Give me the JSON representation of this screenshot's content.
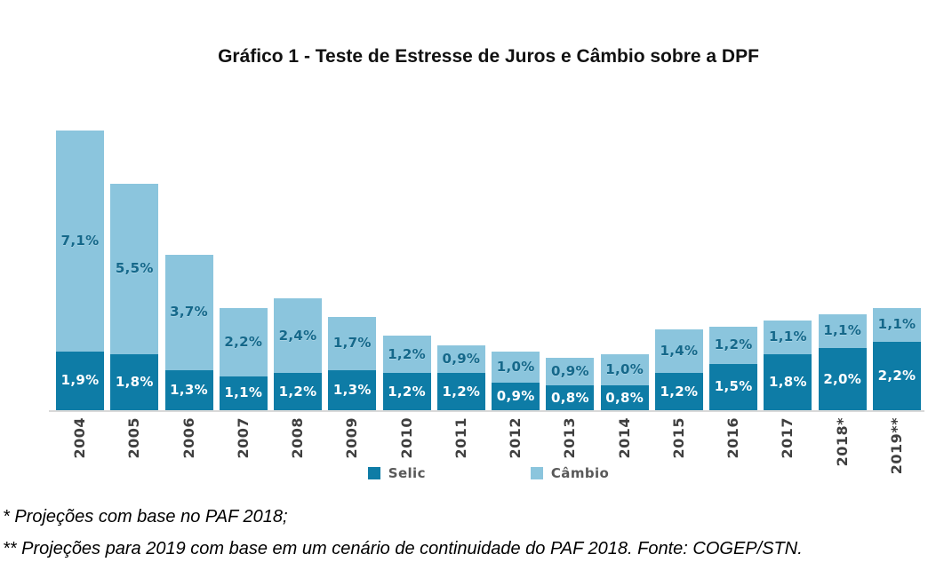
{
  "chart_data": {
    "type": "bar",
    "stacked": true,
    "title": "Gráfico 1 - Teste de Estresse de Juros e Câmbio sobre a DPF",
    "categories": [
      "2004",
      "2005",
      "2006",
      "2007",
      "2008",
      "2009",
      "2010",
      "2011",
      "2012",
      "2013",
      "2014",
      "2015",
      "2016",
      "2017",
      "2018*",
      "2019**"
    ],
    "series": [
      {
        "name": "Selic",
        "color": "#0E7CA6",
        "values": [
          1.9,
          1.8,
          1.3,
          1.1,
          1.2,
          1.3,
          1.2,
          1.2,
          0.9,
          0.8,
          0.8,
          1.2,
          1.5,
          1.8,
          2.0,
          2.2
        ],
        "labels": [
          "1,9%",
          "1,8%",
          "1,3%",
          "1,1%",
          "1,2%",
          "1,3%",
          "1,2%",
          "1,2%",
          "0,9%",
          "0,8%",
          "0,8%",
          "1,2%",
          "1,5%",
          "1,8%",
          "2,0%",
          "2,2%"
        ],
        "label_color": "#FFFFFF"
      },
      {
        "name": "Câmbio",
        "color": "#8BC5DD",
        "values": [
          7.1,
          5.5,
          3.7,
          2.2,
          2.4,
          1.7,
          1.2,
          0.9,
          1.0,
          0.9,
          1.0,
          1.4,
          1.2,
          1.1,
          1.1,
          1.1
        ],
        "labels": [
          "7,1%",
          "5,5%",
          "3,7%",
          "2,2%",
          "2,4%",
          "1,7%",
          "1,2%",
          "0,9%",
          "1,0%",
          "0,9%",
          "1,0%",
          "1,4%",
          "1,2%",
          "1,1%",
          "1,1%",
          "1,1%"
        ],
        "label_color": "#15688A"
      }
    ],
    "unit": "%",
    "ylim": [
      0,
      9.0
    ],
    "grid": false,
    "legend_position": "bottom"
  },
  "footnotes": [
    "* Projeções com base no PAF 2018;",
    "** Projeções para 2019 com base em um cenário de continuidade do PAF 2018. Fonte: COGEP/STN."
  ]
}
